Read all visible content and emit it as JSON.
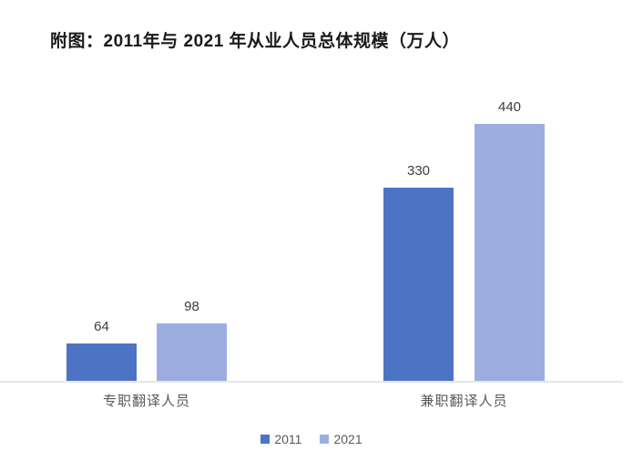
{
  "title": "附图：2011年与 2021 年从业人员总体规模（万人）",
  "chart_data": {
    "type": "bar",
    "title": "附图：2011年与 2021 年从业人员总体规模（万人）",
    "categories": [
      "专职翻译人员",
      "兼职翻译人员"
    ],
    "series": [
      {
        "name": "2011",
        "color": "#4d74c4",
        "values": [
          64,
          330
        ]
      },
      {
        "name": "2021",
        "color": "#9baedf",
        "values": [
          98,
          440
        ]
      }
    ],
    "xlabel": "",
    "ylabel": "",
    "ylim": [
      0,
      440
    ],
    "grid": false,
    "value_labels": true,
    "legend_position": "bottom",
    "axis_line_color": "#e6e6e6",
    "value_label_color": "#3d3d3d",
    "category_label_color": "#595959"
  }
}
